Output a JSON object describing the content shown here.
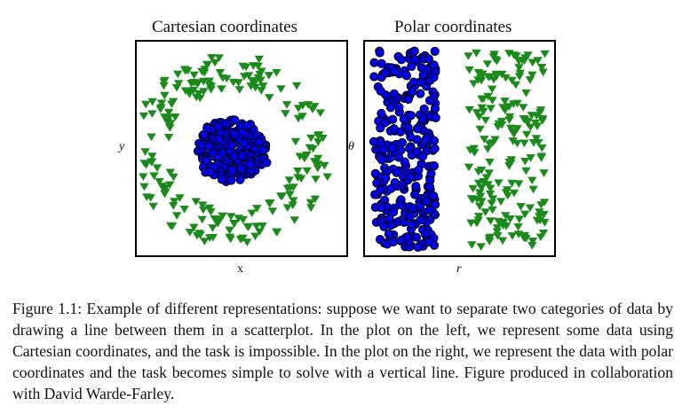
{
  "figure": {
    "panels": [
      {
        "title": "Cartesian coordinates",
        "xlabel": "x",
        "ylabel": "y"
      },
      {
        "title": "Polar coordinates",
        "xlabel": "r",
        "ylabel": "θ"
      }
    ],
    "caption": "Figure 1.1: Example of different representations: suppose we want to separate two categories of data by drawing a line between them in a scatterplot. In the plot on the left, we represent some data using Cartesian coordinates, and the task is impossible. In the plot on the right, we represent the data with polar coordinates and the task becomes simple to solve with a vertical line. Figure produced in collaboration with David Warde-Farley."
  },
  "colors": {
    "circle_fill": "#0000ee",
    "triangle_fill": "#1a8a1a",
    "frame": "#000000"
  },
  "chart_data": [
    {
      "type": "scatter",
      "title": "Cartesian coordinates",
      "xlabel": "x",
      "ylabel": "y",
      "grid": false,
      "series": [
        {
          "marker": "circle",
          "color": "#0000ee",
          "shape": "dense disc cluster at center"
        },
        {
          "marker": "triangle-down",
          "color": "#1a8a1a",
          "shape": "ring surrounding the cluster"
        }
      ]
    },
    {
      "type": "scatter",
      "title": "Polar coordinates",
      "xlabel": "r",
      "ylabel": "θ",
      "grid": false,
      "series": [
        {
          "marker": "circle",
          "color": "#0000ee",
          "shape": "band at small r"
        },
        {
          "marker": "triangle-down",
          "color": "#1a8a1a",
          "shape": "band at larger r"
        }
      ]
    }
  ]
}
